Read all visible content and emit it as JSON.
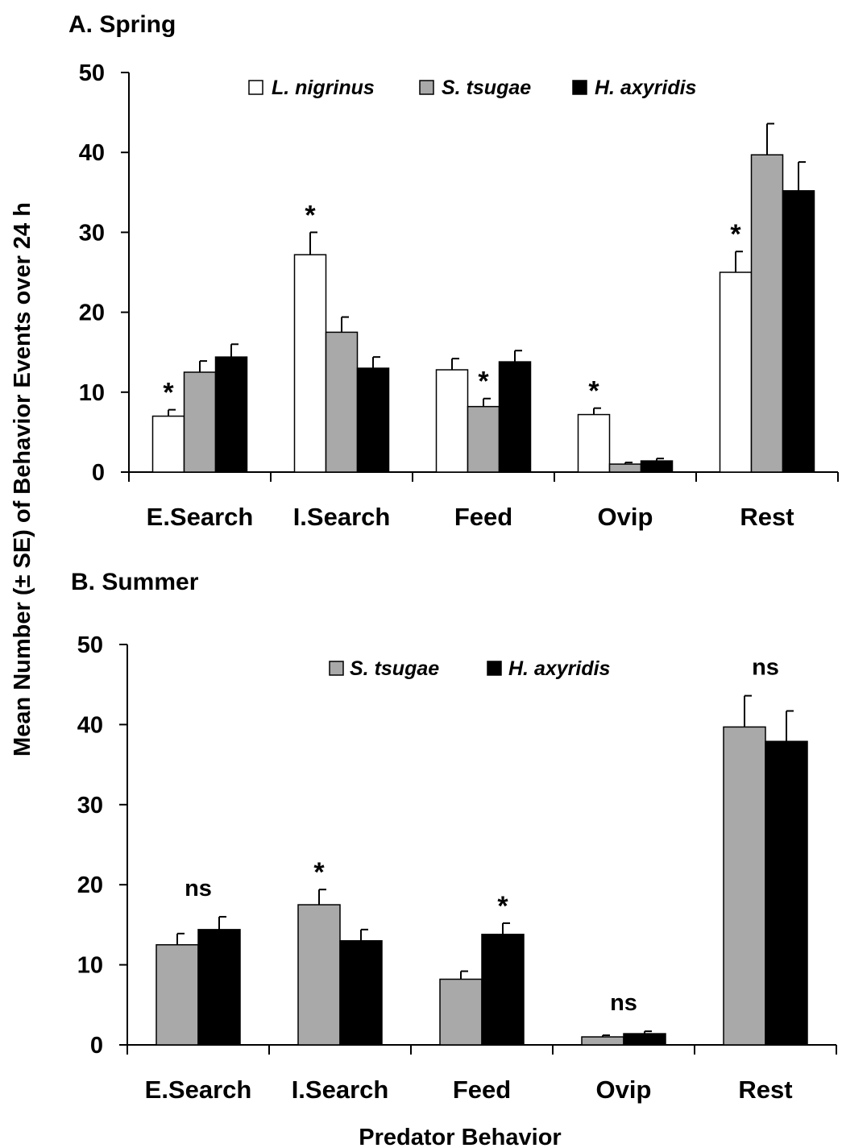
{
  "figure": {
    "ylabel": "Mean Number (± SE) of Behavior Events over 24 h",
    "xlabel": "Predator Behavior"
  },
  "colors": {
    "L. nigrinus": "#ffffff",
    "S. tsugae": "#a9a9a9",
    "H. axyridis": "#000000"
  },
  "chart_data": [
    {
      "type": "bar",
      "title": "A.  Spring",
      "categories": [
        "E.Search",
        "I.Search",
        "Feed",
        "Ovip",
        "Rest"
      ],
      "ylim": [
        0,
        50
      ],
      "yticks": [
        0,
        10,
        20,
        30,
        40,
        50
      ],
      "legend_position": "top",
      "series": [
        {
          "name": "L. nigrinus",
          "values": [
            7.0,
            27.2,
            12.8,
            7.2,
            25.0
          ],
          "errors": [
            0.8,
            2.8,
            1.4,
            0.8,
            2.6
          ]
        },
        {
          "name": "S. tsugae",
          "values": [
            12.5,
            17.5,
            8.2,
            1.0,
            39.7
          ],
          "errors": [
            1.4,
            1.9,
            1.0,
            0.2,
            3.9
          ]
        },
        {
          "name": "H. axyridis",
          "values": [
            14.4,
            13.0,
            13.8,
            1.4,
            35.2
          ],
          "errors": [
            1.6,
            1.4,
            1.4,
            0.3,
            3.6
          ]
        }
      ],
      "annotations": [
        "*",
        "*",
        "*",
        "*",
        "*"
      ],
      "annotation_series": [
        0,
        0,
        1,
        0,
        0
      ]
    },
    {
      "type": "bar",
      "title": "B. Summer",
      "categories": [
        "E.Search",
        "I.Search",
        "Feed",
        "Ovip",
        "Rest"
      ],
      "ylim": [
        0,
        50
      ],
      "yticks": [
        0,
        10,
        20,
        30,
        40,
        50
      ],
      "legend_position": "top",
      "series": [
        {
          "name": "S. tsugae",
          "values": [
            12.5,
            17.5,
            8.2,
            1.0,
            39.7
          ],
          "errors": [
            1.4,
            1.9,
            1.0,
            0.2,
            3.9
          ]
        },
        {
          "name": "H. axyridis",
          "values": [
            14.4,
            13.0,
            13.8,
            1.4,
            37.9
          ],
          "errors": [
            1.6,
            1.4,
            1.4,
            0.3,
            3.8
          ]
        }
      ],
      "annotations": [
        "ns",
        "*",
        "*",
        "ns",
        "ns"
      ],
      "annotation_series": [
        -1,
        0,
        1,
        -1,
        -1
      ]
    }
  ]
}
